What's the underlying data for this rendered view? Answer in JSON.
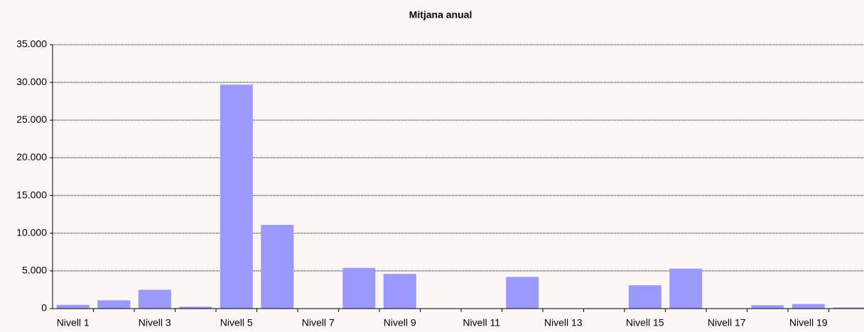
{
  "chart_data": {
    "type": "bar",
    "title": "Mitjana anual",
    "categories": [
      "Nivell 1",
      null,
      "Nivell 3",
      null,
      "Nivell 5",
      null,
      "Nivell 7",
      null,
      "Nivell 9",
      null,
      "Nivell 11",
      null,
      "Nivell 13",
      null,
      "Nivell 15",
      null,
      "Nivell 17",
      null,
      "Nivell 19",
      null
    ],
    "values": [
      500,
      1100,
      2500,
      250,
      29700,
      11100,
      0,
      5400,
      4600,
      0,
      0,
      4200,
      0,
      0,
      3100,
      5300,
      50,
      450,
      600,
      150
    ],
    "color": "#9999ff",
    "ylim": [
      0,
      35000
    ],
    "yticks": [
      0,
      {
        "value": 5000,
        "label": "5.000"
      },
      {
        "value": 10000,
        "label": "10.000"
      },
      {
        "value": 15000,
        "label": "15.000"
      },
      {
        "value": 20000,
        "label": "20.000"
      },
      {
        "value": 25000,
        "label": "25.000"
      },
      {
        "value": 30000,
        "label": "30.000"
      },
      {
        "value": 35000,
        "label": "35.000"
      }
    ],
    "grid": true
  }
}
